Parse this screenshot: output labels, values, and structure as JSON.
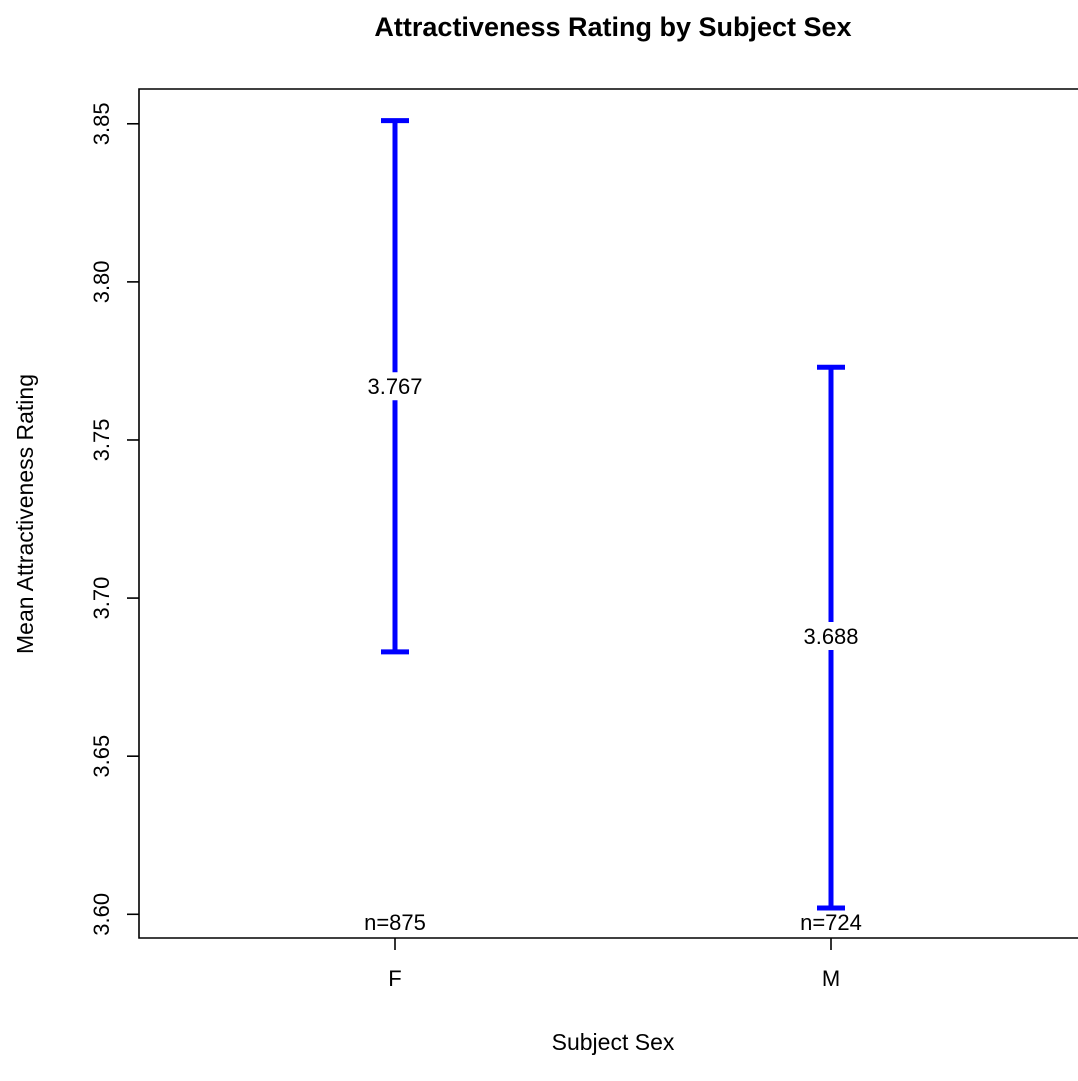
{
  "chart_data": {
    "type": "errorbar",
    "title": "Attractiveness Rating by Subject Sex",
    "xlabel": "Subject Sex",
    "ylabel": "Mean Attractiveness Rating",
    "categories": [
      "F",
      "M"
    ],
    "series": [
      {
        "mean": [
          3.767,
          3.688
        ],
        "mean_labels": [
          "3.767",
          "3.688"
        ],
        "lower": [
          3.683,
          3.602
        ],
        "upper": [
          3.851,
          3.773
        ],
        "n_labels": [
          "n=875",
          "n=724"
        ]
      }
    ],
    "yticks": [
      3.6,
      3.65,
      3.7,
      3.75,
      3.8,
      3.85
    ],
    "ytick_labels": [
      "3.60",
      "3.65",
      "3.70",
      "3.75",
      "3.80",
      "3.85"
    ],
    "ylim": [
      3.5925,
      3.861
    ],
    "grid": false,
    "color": "#0000ff"
  }
}
